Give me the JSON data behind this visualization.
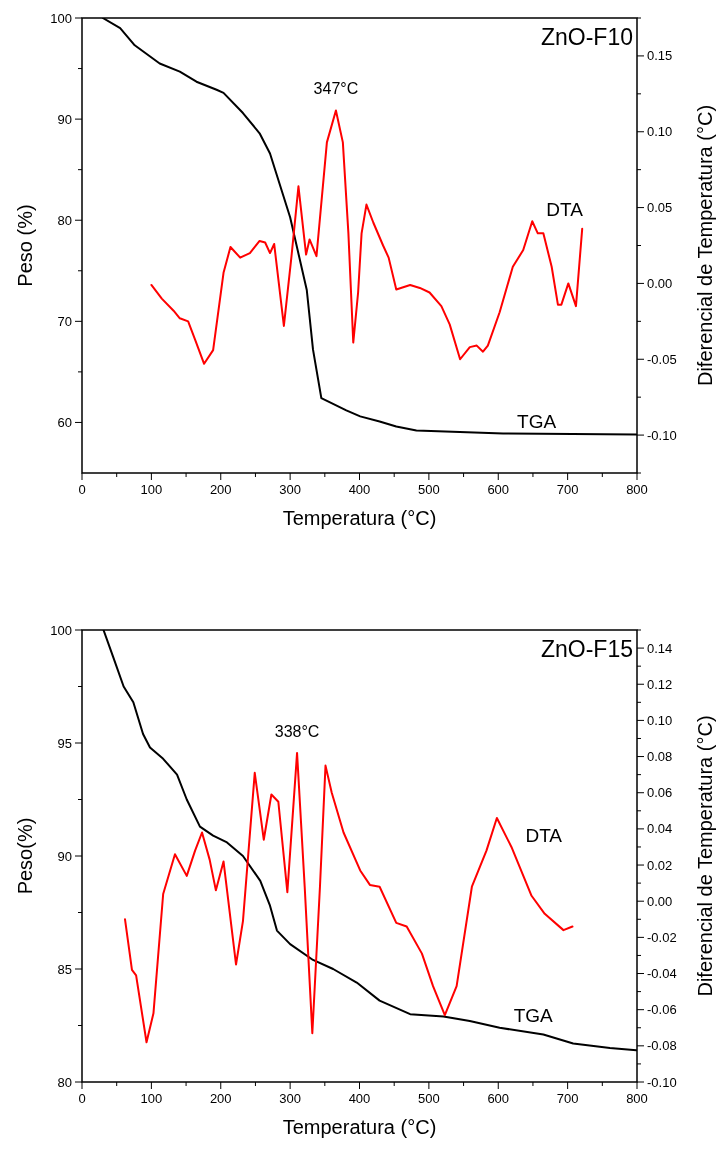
{
  "chart_data": [
    {
      "type": "line",
      "title": "ZnO-F10",
      "xlabel": "Temperatura (°C)",
      "ylabel": "Peso (%)",
      "y2label": "Diferencial de Temperatura (°C)",
      "xlim": [
        0,
        800
      ],
      "xticks": [
        0,
        {
          "value": 50,
          "label": null
        },
        100,
        {
          "value": 150,
          "label": null
        },
        200,
        {
          "value": 250,
          "label": null
        },
        300,
        {
          "value": 350,
          "label": null
        },
        400,
        {
          "value": 450,
          "label": null
        },
        500,
        {
          "value": 550,
          "label": null
        },
        600,
        {
          "value": 650,
          "label": null
        },
        700,
        {
          "value": 750,
          "label": null
        },
        800
      ],
      "ylim": [
        55,
        100
      ],
      "yticks": [
        60,
        {
          "value": 65,
          "label": null
        },
        70,
        {
          "value": 75,
          "label": null
        },
        80,
        {
          "value": 85,
          "label": null
        },
        90,
        {
          "value": 95,
          "label": null
        },
        100
      ],
      "y2lim": [
        -0.125,
        0.175
      ],
      "y2ticks": [
        {
          "value": -0.125,
          "label": null
        },
        {
          "value": -0.1,
          "label": "-0.10"
        },
        {
          "value": -0.075,
          "label": null
        },
        {
          "value": -0.05,
          "label": "-0.05"
        },
        {
          "value": -0.025,
          "label": null
        },
        {
          "value": 0,
          "label": "0.00"
        },
        {
          "value": 0.025,
          "label": null
        },
        {
          "value": 0.05,
          "label": "0.05"
        },
        {
          "value": 0.075,
          "label": null
        },
        {
          "value": 0.1,
          "label": "0.10"
        },
        {
          "value": 0.125,
          "label": null
        },
        {
          "value": 0.15,
          "label": "0.15"
        },
        {
          "value": 0.175,
          "label": null
        }
      ],
      "annotations": [
        "347°C"
      ],
      "series": [
        {
          "name": "TGA",
          "color": "#000000",
          "x": [
            30,
            55,
            76,
            112,
            141,
            165,
            194,
            204,
            232,
            256,
            271,
            300,
            324,
            333,
            345,
            381,
            401,
            429,
            453,
            482,
            607,
            799
          ],
          "values": [
            100,
            99,
            97.3,
            95.5,
            94.7,
            93.7,
            92.9,
            92.6,
            90.6,
            88.6,
            86.6,
            80.3,
            73.1,
            67.2,
            62.4,
            61.2,
            60.6,
            60.1,
            59.6,
            59.2,
            58.9,
            58.8
          ]
        },
        {
          "name": "DTA",
          "color": "#ff0000",
          "axis": "y2",
          "x": [
            100,
            115,
            132,
            141,
            153,
            163,
            176,
            189,
            204,
            214,
            228,
            242,
            256,
            264,
            271,
            277,
            291,
            302,
            312,
            323,
            328,
            338,
            353,
            366,
            376,
            384,
            391,
            398,
            403,
            410,
            420,
            434,
            442,
            453,
            473,
            487,
            501,
            518,
            530,
            545,
            559,
            569,
            578,
            585,
            602,
            621,
            636,
            649,
            657,
            665,
            677,
            686,
            691,
            701,
            712,
            721
          ],
          "values": [
            -0.001,
            -0.01,
            -0.018,
            -0.023,
            -0.025,
            -0.037,
            -0.053,
            -0.044,
            0.007,
            0.024,
            0.017,
            0.02,
            0.028,
            0.027,
            0.02,
            0.026,
            -0.028,
            0.018,
            0.064,
            0.019,
            0.029,
            0.018,
            0.093,
            0.114,
            0.093,
            0.033,
            -0.039,
            -0.006,
            0.033,
            0.052,
            0.04,
            0.025,
            0.017,
            -0.004,
            -0.001,
            -0.003,
            -0.006,
            -0.015,
            -0.027,
            -0.05,
            -0.042,
            -0.041,
            -0.045,
            -0.041,
            -0.019,
            0.011,
            0.022,
            0.041,
            0.033,
            0.033,
            0.011,
            -0.014,
            -0.014,
            0,
            -0.015,
            0.036
          ]
        }
      ]
    },
    {
      "type": "line",
      "title": "ZnO-F15",
      "xlabel": "Temperatura (°C)",
      "ylabel": "Peso(%)",
      "y2label": "Diferencial de Temperatura (°C)",
      "xlim": [
        0,
        800
      ],
      "xticks": [
        0,
        {
          "value": 50,
          "label": null
        },
        100,
        {
          "value": 150,
          "label": null
        },
        200,
        {
          "value": 250,
          "label": null
        },
        300,
        {
          "value": 350,
          "label": null
        },
        400,
        {
          "value": 450,
          "label": null
        },
        500,
        {
          "value": 550,
          "label": null
        },
        600,
        {
          "value": 650,
          "label": null
        },
        700,
        {
          "value": 750,
          "label": null
        },
        800
      ],
      "ylim": [
        80,
        100
      ],
      "yticks": [
        80,
        {
          "value": 82.5,
          "label": null
        },
        85,
        {
          "value": 87.5,
          "label": null
        },
        90,
        {
          "value": 92.5,
          "label": null
        },
        95,
        {
          "value": 97.5,
          "label": null
        },
        100
      ],
      "y2lim": [
        -0.1,
        0.15
      ],
      "y2ticks": [
        {
          "value": -0.1,
          "label": "-0.10"
        },
        {
          "value": -0.09,
          "label": null
        },
        {
          "value": -0.08,
          "label": "-0.08"
        },
        {
          "value": -0.07,
          "label": null
        },
        {
          "value": -0.06,
          "label": "-0.06"
        },
        {
          "value": -0.05,
          "label": null
        },
        {
          "value": -0.04,
          "label": "-0.04"
        },
        {
          "value": -0.03,
          "label": null
        },
        {
          "value": -0.02,
          "label": "-0.02"
        },
        {
          "value": -0.01,
          "label": null
        },
        {
          "value": 0,
          "label": "0.00"
        },
        {
          "value": 0.01,
          "label": null
        },
        {
          "value": 0.02,
          "label": "0.02"
        },
        {
          "value": 0.03,
          "label": null
        },
        {
          "value": 0.04,
          "label": "0.04"
        },
        {
          "value": 0.05,
          "label": null
        },
        {
          "value": 0.06,
          "label": "0.06"
        },
        {
          "value": 0.07,
          "label": null
        },
        {
          "value": 0.08,
          "label": "0.08"
        },
        {
          "value": 0.09,
          "label": null
        },
        {
          "value": 0.1,
          "label": "0.10"
        },
        {
          "value": 0.11,
          "label": null
        },
        {
          "value": 0.12,
          "label": "0.12"
        },
        {
          "value": 0.13,
          "label": null
        },
        {
          "value": 0.14,
          "label": "0.14"
        },
        {
          "value": 0.15,
          "label": null
        }
      ],
      "annotations": [
        "338°C"
      ],
      "series": [
        {
          "name": "TGA",
          "color": "#000000",
          "x": [
            31,
            45,
            60,
            74,
            88,
            98,
            117,
            137,
            151,
            170,
            189,
            209,
            232,
            257,
            271,
            281,
            300,
            333,
            362,
            396,
            429,
            473,
            521,
            559,
            602,
            665,
            708,
            761,
            799
          ],
          "values": [
            100,
            98.8,
            97.5,
            96.8,
            95.4,
            94.8,
            94.3,
            93.6,
            92.5,
            91.3,
            90.9,
            90.6,
            90,
            88.9,
            87.8,
            86.7,
            86.1,
            85.4,
            85,
            84.4,
            83.6,
            83,
            82.9,
            82.7,
            82.4,
            82.1,
            81.7,
            81.5,
            81.4
          ]
        },
        {
          "name": "DTA",
          "color": "#ff0000",
          "axis": "y2",
          "x": [
            62,
            72,
            78,
            93,
            103,
            117,
            134,
            151,
            163,
            173,
            184,
            193,
            204,
            222,
            232,
            249,
            262,
            273,
            283,
            296,
            310,
            321,
            332,
            343,
            351,
            360,
            377,
            401,
            415,
            429,
            453,
            468,
            490,
            506,
            523,
            540,
            562,
            583,
            598,
            619,
            648,
            667,
            694,
            707
          ],
          "values": [
            -0.01,
            -0.038,
            -0.041,
            -0.078,
            -0.062,
            0.004,
            0.026,
            0.014,
            0.028,
            0.038,
            0.023,
            0.006,
            0.022,
            -0.035,
            -0.011,
            0.071,
            0.034,
            0.059,
            0.055,
            0.005,
            0.082,
            0.008,
            -0.073,
            0.008,
            0.075,
            0.06,
            0.038,
            0.017,
            0.009,
            0.008,
            -0.012,
            -0.014,
            -0.029,
            -0.047,
            -0.063,
            -0.047,
            0.008,
            0.028,
            0.046,
            0.03,
            0.003,
            -0.007,
            -0.016,
            -0.014
          ]
        }
      ]
    }
  ]
}
